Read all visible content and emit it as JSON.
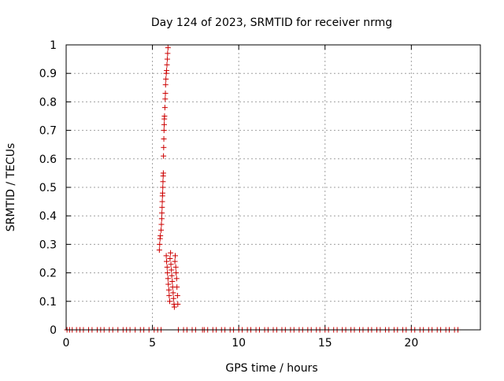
{
  "chart_data": {
    "type": "scatter",
    "title": "Day 124 of 2023, SRMTID for receiver nrmg",
    "xlabel": "GPS time / hours",
    "ylabel": "SRMTID / TECUs",
    "xlim": [
      0,
      24
    ],
    "ylim": [
      0,
      1
    ],
    "xticks": [
      0,
      5,
      10,
      15,
      20
    ],
    "yticks": [
      0,
      0.1,
      0.2,
      0.3,
      0.4,
      0.5,
      0.6,
      0.7,
      0.8,
      0.9,
      1
    ],
    "grid": true,
    "marker": "+",
    "marker_color": "#cc0000",
    "series": [
      {
        "points": [
          [
            0.05,
            0
          ],
          [
            0.2,
            0
          ],
          [
            0.35,
            0
          ],
          [
            0.6,
            0
          ],
          [
            0.8,
            0
          ],
          [
            1.0,
            0
          ],
          [
            1.3,
            0
          ],
          [
            1.5,
            0
          ],
          [
            1.8,
            0
          ],
          [
            2.0,
            0
          ],
          [
            2.2,
            0
          ],
          [
            2.5,
            0
          ],
          [
            2.7,
            0
          ],
          [
            3.0,
            0
          ],
          [
            3.3,
            0
          ],
          [
            3.5,
            0
          ],
          [
            3.7,
            0
          ],
          [
            4.0,
            0
          ],
          [
            4.3,
            0
          ],
          [
            4.5,
            0
          ],
          [
            4.8,
            0
          ],
          [
            5.1,
            0
          ],
          [
            5.3,
            0
          ],
          [
            5.5,
            0
          ],
          [
            6.5,
            0
          ],
          [
            6.8,
            0
          ],
          [
            7.0,
            0
          ],
          [
            7.3,
            0
          ],
          [
            7.5,
            0
          ],
          [
            7.9,
            0
          ],
          [
            8.0,
            0
          ],
          [
            8.2,
            0
          ],
          [
            8.5,
            0
          ],
          [
            8.7,
            0
          ],
          [
            9.0,
            0
          ],
          [
            9.2,
            0
          ],
          [
            9.5,
            0
          ],
          [
            9.7,
            0
          ],
          [
            10.0,
            0
          ],
          [
            10.2,
            0
          ],
          [
            10.5,
            0
          ],
          [
            10.7,
            0
          ],
          [
            11.0,
            0
          ],
          [
            11.2,
            0
          ],
          [
            11.5,
            0
          ],
          [
            11.7,
            0
          ],
          [
            12.0,
            0
          ],
          [
            12.2,
            0
          ],
          [
            12.5,
            0
          ],
          [
            12.7,
            0
          ],
          [
            13.0,
            0
          ],
          [
            13.2,
            0
          ],
          [
            13.5,
            0
          ],
          [
            13.7,
            0
          ],
          [
            14.0,
            0
          ],
          [
            14.2,
            0
          ],
          [
            14.5,
            0
          ],
          [
            14.7,
            0
          ],
          [
            15.0,
            0
          ],
          [
            15.2,
            0
          ],
          [
            15.5,
            0
          ],
          [
            15.7,
            0
          ],
          [
            16.0,
            0
          ],
          [
            16.2,
            0
          ],
          [
            16.5,
            0
          ],
          [
            16.7,
            0
          ],
          [
            17.0,
            0
          ],
          [
            17.2,
            0
          ],
          [
            17.5,
            0
          ],
          [
            17.7,
            0
          ],
          [
            18.0,
            0
          ],
          [
            18.2,
            0
          ],
          [
            18.5,
            0
          ],
          [
            18.7,
            0
          ],
          [
            19.0,
            0
          ],
          [
            19.2,
            0
          ],
          [
            19.5,
            0
          ],
          [
            19.7,
            0
          ],
          [
            20.0,
            0
          ],
          [
            20.2,
            0
          ],
          [
            20.5,
            0
          ],
          [
            20.7,
            0
          ],
          [
            21.0,
            0
          ],
          [
            21.2,
            0
          ],
          [
            21.5,
            0
          ],
          [
            21.7,
            0
          ],
          [
            22.0,
            0
          ],
          [
            22.2,
            0
          ],
          [
            22.5,
            0
          ],
          [
            22.7,
            0
          ],
          [
            5.4,
            0.28
          ],
          [
            5.42,
            0.3
          ],
          [
            5.44,
            0.32
          ],
          [
            5.46,
            0.33
          ],
          [
            5.5,
            0.35
          ],
          [
            5.52,
            0.37
          ],
          [
            5.54,
            0.39
          ],
          [
            5.55,
            0.41
          ],
          [
            5.56,
            0.43
          ],
          [
            5.57,
            0.45
          ],
          [
            5.58,
            0.47
          ],
          [
            5.59,
            0.48
          ],
          [
            5.6,
            0.5
          ],
          [
            5.61,
            0.52
          ],
          [
            5.62,
            0.54
          ],
          [
            5.63,
            0.55
          ],
          [
            5.64,
            0.61
          ],
          [
            5.65,
            0.64
          ],
          [
            5.66,
            0.67
          ],
          [
            5.67,
            0.7
          ],
          [
            5.68,
            0.72
          ],
          [
            5.69,
            0.74
          ],
          [
            5.7,
            0.75
          ],
          [
            5.72,
            0.78
          ],
          [
            5.74,
            0.81
          ],
          [
            5.75,
            0.83
          ],
          [
            5.76,
            0.86
          ],
          [
            5.78,
            0.88
          ],
          [
            5.8,
            0.9
          ],
          [
            5.82,
            0.91
          ],
          [
            5.84,
            0.93
          ],
          [
            5.86,
            0.95
          ],
          [
            5.88,
            0.97
          ],
          [
            5.9,
            0.99
          ],
          [
            5.8,
            0.26
          ],
          [
            5.82,
            0.24
          ],
          [
            5.85,
            0.22
          ],
          [
            5.87,
            0.2
          ],
          [
            5.9,
            0.18
          ],
          [
            5.92,
            0.16
          ],
          [
            5.95,
            0.14
          ],
          [
            5.97,
            0.12
          ],
          [
            6.0,
            0.1
          ],
          [
            6.02,
            0.25
          ],
          [
            6.05,
            0.27
          ],
          [
            6.07,
            0.23
          ],
          [
            6.1,
            0.21
          ],
          [
            6.12,
            0.19
          ],
          [
            6.15,
            0.17
          ],
          [
            6.17,
            0.15
          ],
          [
            6.2,
            0.13
          ],
          [
            6.22,
            0.11
          ],
          [
            6.25,
            0.09
          ],
          [
            6.27,
            0.08
          ],
          [
            6.3,
            0.24
          ],
          [
            6.32,
            0.26
          ],
          [
            6.35,
            0.22
          ],
          [
            6.37,
            0.2
          ],
          [
            6.4,
            0.18
          ],
          [
            6.42,
            0.15
          ],
          [
            6.45,
            0.12
          ],
          [
            6.47,
            0.09
          ]
        ]
      }
    ]
  }
}
